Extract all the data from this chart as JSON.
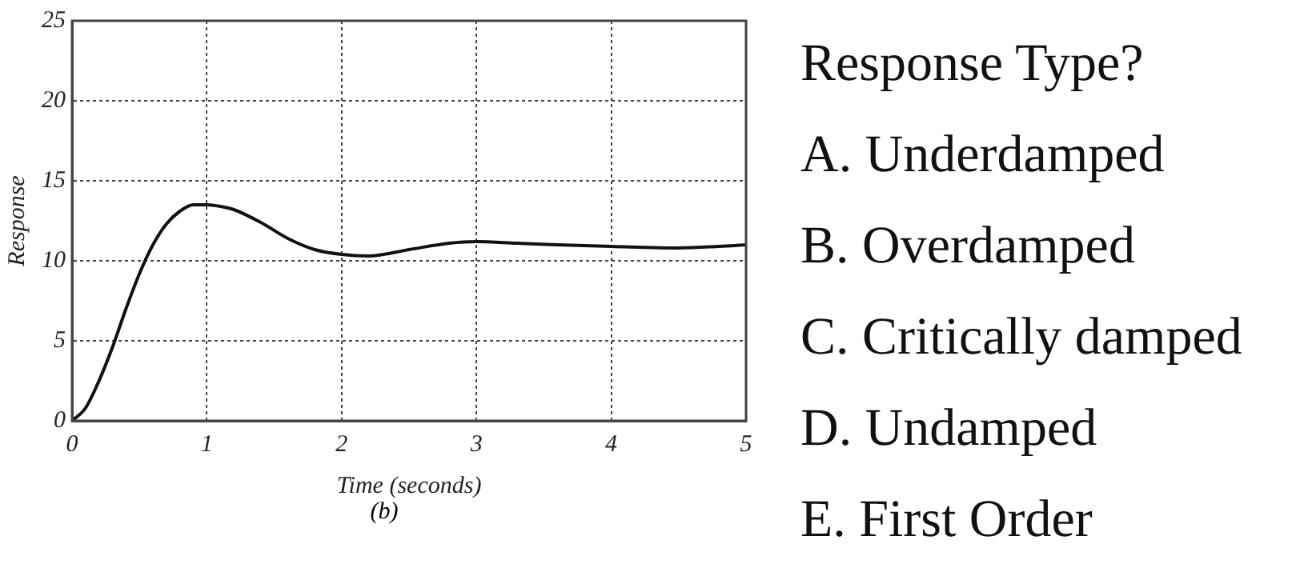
{
  "chart_data": {
    "type": "line",
    "xlabel": "Time (seconds)",
    "ylabel": "Response",
    "x": [
      0,
      0.1,
      0.2,
      0.3,
      0.4,
      0.5,
      0.6,
      0.7,
      0.8,
      0.9,
      1,
      1.1,
      1.2,
      1.4,
      1.6,
      1.8,
      2,
      2.2,
      2.5,
      2.8,
      3,
      3.3,
      3.6,
      4,
      4.5,
      4.8,
      5
    ],
    "series": [
      {
        "color": "#111111",
        "values": [
          0,
          0.8,
          2.5,
          4.6,
          7,
          9.2,
          11,
          12.3,
          13.1,
          13.5,
          13.5,
          13.4,
          13.2,
          12.4,
          11.4,
          10.7,
          10.4,
          10.3,
          10.7,
          11.1,
          11.2,
          11.1,
          11,
          10.9,
          10.8,
          10.9,
          11
        ]
      }
    ],
    "xlim": [
      0,
      5
    ],
    "xticks": [
      0,
      1,
      2,
      3,
      4,
      5
    ],
    "ylim": [
      0,
      25
    ],
    "yticks": [
      0,
      5,
      10,
      15,
      20,
      25
    ],
    "grid": true,
    "legend": false,
    "marker": "none",
    "line_style": "solid",
    "annotations": [
      "(b)",
      "Response Type?",
      "A.  Underdamped",
      "B.  Overdamped",
      "C.  Critically damped",
      "D.  Undamped",
      "E.  First Order"
    ]
  }
}
